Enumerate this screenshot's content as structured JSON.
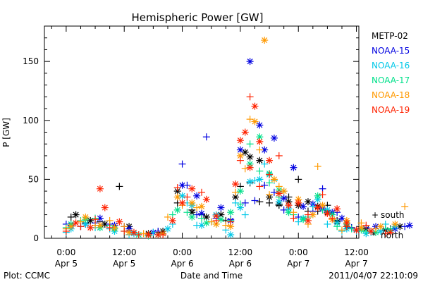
{
  "chart_data": {
    "type": "scatter",
    "title": "Hemispheric Power [GW]",
    "ylabel": "P [GW]",
    "xlabel": "Date and Time",
    "ylim": [
      0,
      180
    ],
    "yticks": [
      0,
      50,
      100,
      150
    ],
    "xlim_hours": [
      -4.5,
      60.5
    ],
    "xticks": [
      {
        "hour": 0,
        "line1": "0:00",
        "line2": "Apr 5"
      },
      {
        "hour": 12,
        "line1": "12:00",
        "line2": "Apr 5"
      },
      {
        "hour": 24,
        "line1": "0:00",
        "line2": "Apr 6"
      },
      {
        "hour": 36,
        "line1": "12:00",
        "line2": "Apr 6"
      },
      {
        "hour": 48,
        "line1": "0:00",
        "line2": "Apr 7"
      },
      {
        "hour": 60,
        "line1": "12:00",
        "line2": "Apr 7"
      }
    ],
    "hemisphere_legend": [
      {
        "symbol": "+",
        "label": "south"
      },
      {
        "symbol": "*",
        "label": "north"
      }
    ],
    "series": [
      {
        "name": "METP-02",
        "color": "#000000",
        "south": [
          [
            1,
            18
          ],
          [
            4,
            13
          ],
          [
            7,
            14
          ],
          [
            11,
            44
          ],
          [
            13,
            6
          ],
          [
            19,
            5
          ],
          [
            23,
            30
          ],
          [
            26,
            24
          ],
          [
            28,
            20
          ],
          [
            33,
            15
          ],
          [
            36,
            44
          ],
          [
            38,
            47
          ],
          [
            40,
            31
          ],
          [
            42,
            30
          ],
          [
            44,
            28
          ],
          [
            46,
            35
          ],
          [
            48,
            50
          ],
          [
            50,
            23
          ],
          [
            52,
            23
          ],
          [
            54,
            28
          ],
          [
            56,
            15
          ],
          [
            59,
            9
          ],
          [
            63,
            6
          ],
          [
            67,
            8
          ]
        ],
        "north": [
          [
            2,
            20
          ],
          [
            5,
            15
          ],
          [
            8,
            12
          ],
          [
            13,
            10
          ],
          [
            17,
            4
          ],
          [
            20,
            6
          ],
          [
            23,
            40
          ],
          [
            26,
            22
          ],
          [
            29,
            18
          ],
          [
            32,
            20
          ],
          [
            35,
            35
          ],
          [
            37,
            73
          ],
          [
            38,
            69
          ],
          [
            40,
            66
          ],
          [
            42,
            35
          ],
          [
            44,
            29
          ],
          [
            46,
            31
          ],
          [
            48,
            28
          ],
          [
            50,
            31
          ],
          [
            52,
            27
          ],
          [
            54,
            22
          ],
          [
            56,
            14
          ],
          [
            58,
            10
          ],
          [
            62,
            8
          ],
          [
            66,
            7
          ],
          [
            69,
            10
          ]
        ]
      },
      {
        "name": "NOAA-15",
        "color": "#0000e0",
        "south": [
          [
            0,
            12
          ],
          [
            3,
            10
          ],
          [
            6,
            13
          ],
          [
            9,
            12
          ],
          [
            12,
            10
          ],
          [
            19,
            6
          ],
          [
            24,
            63
          ],
          [
            25,
            45
          ],
          [
            27,
            20
          ],
          [
            29,
            86
          ],
          [
            31,
            17
          ],
          [
            34,
            16
          ],
          [
            37,
            30
          ],
          [
            39,
            32
          ],
          [
            41,
            45
          ],
          [
            43,
            39
          ],
          [
            45,
            24
          ],
          [
            48,
            18
          ],
          [
            51,
            23
          ],
          [
            53,
            42
          ],
          [
            56,
            22
          ],
          [
            59,
            9
          ],
          [
            62,
            9
          ],
          [
            66,
            8
          ],
          [
            70,
            10
          ]
        ],
        "north": [
          [
            1,
            11
          ],
          [
            4,
            12
          ],
          [
            7,
            17
          ],
          [
            10,
            11
          ],
          [
            13,
            8
          ],
          [
            18,
            5
          ],
          [
            20,
            4
          ],
          [
            24,
            45
          ],
          [
            27,
            36
          ],
          [
            28,
            21
          ],
          [
            32,
            26
          ],
          [
            34,
            15
          ],
          [
            36,
            75
          ],
          [
            38,
            150
          ],
          [
            40,
            96
          ],
          [
            41,
            75
          ],
          [
            43,
            85
          ],
          [
            45,
            34
          ],
          [
            47,
            60
          ],
          [
            49,
            27
          ],
          [
            51,
            29
          ],
          [
            53,
            25
          ],
          [
            55,
            22
          ],
          [
            57,
            17
          ],
          [
            60,
            7
          ],
          [
            64,
            10
          ],
          [
            68,
            8
          ],
          [
            71,
            11
          ]
        ]
      },
      {
        "name": "NOAA-16",
        "color": "#00c8e8",
        "south": [
          [
            0,
            5
          ],
          [
            3,
            10
          ],
          [
            6,
            9
          ],
          [
            9,
            8
          ],
          [
            13,
            3
          ],
          [
            18,
            5
          ],
          [
            22,
            12
          ],
          [
            25,
            30
          ],
          [
            27,
            11
          ],
          [
            30,
            14
          ],
          [
            33,
            7
          ],
          [
            35,
            30
          ],
          [
            37,
            20
          ],
          [
            39,
            49
          ],
          [
            41,
            63
          ],
          [
            43,
            49
          ],
          [
            45,
            40
          ],
          [
            48,
            14
          ],
          [
            51,
            27
          ],
          [
            54,
            12
          ],
          [
            57,
            6
          ],
          [
            60,
            6
          ],
          [
            63,
            5
          ],
          [
            66,
            12
          ]
        ],
        "north": [
          [
            1,
            8
          ],
          [
            4,
            12
          ],
          [
            7,
            9
          ],
          [
            10,
            6
          ],
          [
            14,
            4
          ],
          [
            17,
            3
          ],
          [
            21,
            8
          ],
          [
            24,
            36
          ],
          [
            26,
            28
          ],
          [
            28,
            11
          ],
          [
            31,
            20
          ],
          [
            34,
            3
          ],
          [
            36,
            26
          ],
          [
            38,
            48
          ],
          [
            40,
            50
          ],
          [
            42,
            54
          ],
          [
            44,
            31
          ],
          [
            46,
            25
          ],
          [
            49,
            17
          ],
          [
            52,
            33
          ],
          [
            54,
            24
          ],
          [
            56,
            13
          ],
          [
            58,
            8
          ],
          [
            62,
            4
          ],
          [
            65,
            6
          ],
          [
            68,
            10
          ]
        ]
      },
      {
        "name": "NOAA-17",
        "color": "#00e08a",
        "south": [
          [
            0,
            9
          ],
          [
            3,
            15
          ],
          [
            6,
            17
          ],
          [
            9,
            11
          ],
          [
            12,
            6
          ],
          [
            17,
            2
          ],
          [
            22,
            20
          ],
          [
            25,
            22
          ],
          [
            28,
            17
          ],
          [
            31,
            12
          ],
          [
            34,
            15
          ],
          [
            36,
            29
          ],
          [
            38,
            80
          ],
          [
            40,
            57
          ],
          [
            42,
            47
          ],
          [
            44,
            35
          ],
          [
            47,
            20
          ],
          [
            50,
            18
          ],
          [
            53,
            24
          ],
          [
            56,
            10
          ],
          [
            59,
            8
          ],
          [
            62,
            6
          ],
          [
            66,
            8
          ]
        ],
        "north": [
          [
            1,
            12
          ],
          [
            4,
            16
          ],
          [
            7,
            9
          ],
          [
            10,
            8
          ],
          [
            15,
            3
          ],
          [
            19,
            3
          ],
          [
            23,
            24
          ],
          [
            26,
            18
          ],
          [
            29,
            13
          ],
          [
            32,
            16
          ],
          [
            34,
            22
          ],
          [
            36,
            40
          ],
          [
            38,
            63
          ],
          [
            40,
            86
          ],
          [
            42,
            55
          ],
          [
            44,
            41
          ],
          [
            46,
            22
          ],
          [
            49,
            16
          ],
          [
            52,
            36
          ],
          [
            55,
            20
          ],
          [
            58,
            12
          ],
          [
            61,
            7
          ],
          [
            64,
            5
          ],
          [
            67,
            7
          ]
        ]
      },
      {
        "name": "NOAA-18",
        "color": "#ff9900",
        "south": [
          [
            0,
            8
          ],
          [
            3,
            14
          ],
          [
            6,
            11
          ],
          [
            9,
            15
          ],
          [
            12,
            10
          ],
          [
            16,
            4
          ],
          [
            21,
            18
          ],
          [
            24,
            28
          ],
          [
            27,
            26
          ],
          [
            30,
            14
          ],
          [
            33,
            11
          ],
          [
            35,
            39
          ],
          [
            37,
            59
          ],
          [
            38,
            101
          ],
          [
            40,
            75
          ],
          [
            42,
            37
          ],
          [
            44,
            44
          ],
          [
            47,
            22
          ],
          [
            50,
            12
          ],
          [
            52,
            61
          ],
          [
            54,
            21
          ],
          [
            57,
            7
          ],
          [
            61,
            13
          ],
          [
            64,
            8
          ],
          [
            70,
            27
          ]
        ],
        "north": [
          [
            1,
            10
          ],
          [
            4,
            18
          ],
          [
            7,
            11
          ],
          [
            10,
            9
          ],
          [
            13,
            5
          ],
          [
            17,
            3
          ],
          [
            20,
            4
          ],
          [
            23,
            35
          ],
          [
            26,
            30
          ],
          [
            28,
            27
          ],
          [
            31,
            12
          ],
          [
            34,
            10
          ],
          [
            36,
            70
          ],
          [
            39,
            99
          ],
          [
            41,
            168
          ],
          [
            43,
            50
          ],
          [
            45,
            40
          ],
          [
            48,
            33
          ],
          [
            51,
            20
          ],
          [
            53,
            28
          ],
          [
            55,
            16
          ],
          [
            58,
            15
          ],
          [
            61,
            9
          ],
          [
            65,
            10
          ],
          [
            68,
            12
          ]
        ]
      },
      {
        "name": "NOAA-19",
        "color": "#ff2200",
        "south": [
          [
            0,
            6
          ],
          [
            3,
            10
          ],
          [
            6,
            16
          ],
          [
            9,
            9
          ],
          [
            12,
            6
          ],
          [
            15,
            3
          ],
          [
            20,
            3
          ],
          [
            23,
            43
          ],
          [
            25,
            35
          ],
          [
            28,
            39
          ],
          [
            31,
            15
          ],
          [
            34,
            14
          ],
          [
            36,
            66
          ],
          [
            38,
            120
          ],
          [
            40,
            44
          ],
          [
            42,
            54
          ],
          [
            44,
            70
          ],
          [
            47,
            17
          ],
          [
            50,
            20
          ],
          [
            53,
            37
          ],
          [
            55,
            17
          ],
          [
            58,
            10
          ],
          [
            62,
            11
          ],
          [
            66,
            4
          ]
        ],
        "north": [
          [
            2,
            13
          ],
          [
            5,
            9
          ],
          [
            7,
            42
          ],
          [
            8,
            26
          ],
          [
            11,
            14
          ],
          [
            14,
            5
          ],
          [
            17,
            3
          ],
          [
            19,
            3
          ],
          [
            22,
            15
          ],
          [
            24,
            30
          ],
          [
            26,
            42
          ],
          [
            29,
            33
          ],
          [
            31,
            19
          ],
          [
            35,
            46
          ],
          [
            36,
            83
          ],
          [
            37,
            90
          ],
          [
            38,
            60
          ],
          [
            39,
            112
          ],
          [
            40,
            82
          ],
          [
            42,
            66
          ],
          [
            44,
            38
          ],
          [
            46,
            28
          ],
          [
            48,
            30
          ],
          [
            50,
            15
          ],
          [
            52,
            26
          ],
          [
            54,
            21
          ],
          [
            56,
            25
          ],
          [
            58,
            13
          ],
          [
            60,
            7
          ],
          [
            63,
            6
          ],
          [
            67,
            5
          ]
        ]
      }
    ]
  },
  "footer": {
    "left": "Plot: CCMC",
    "right": "2011/04/07 22:10:09"
  }
}
